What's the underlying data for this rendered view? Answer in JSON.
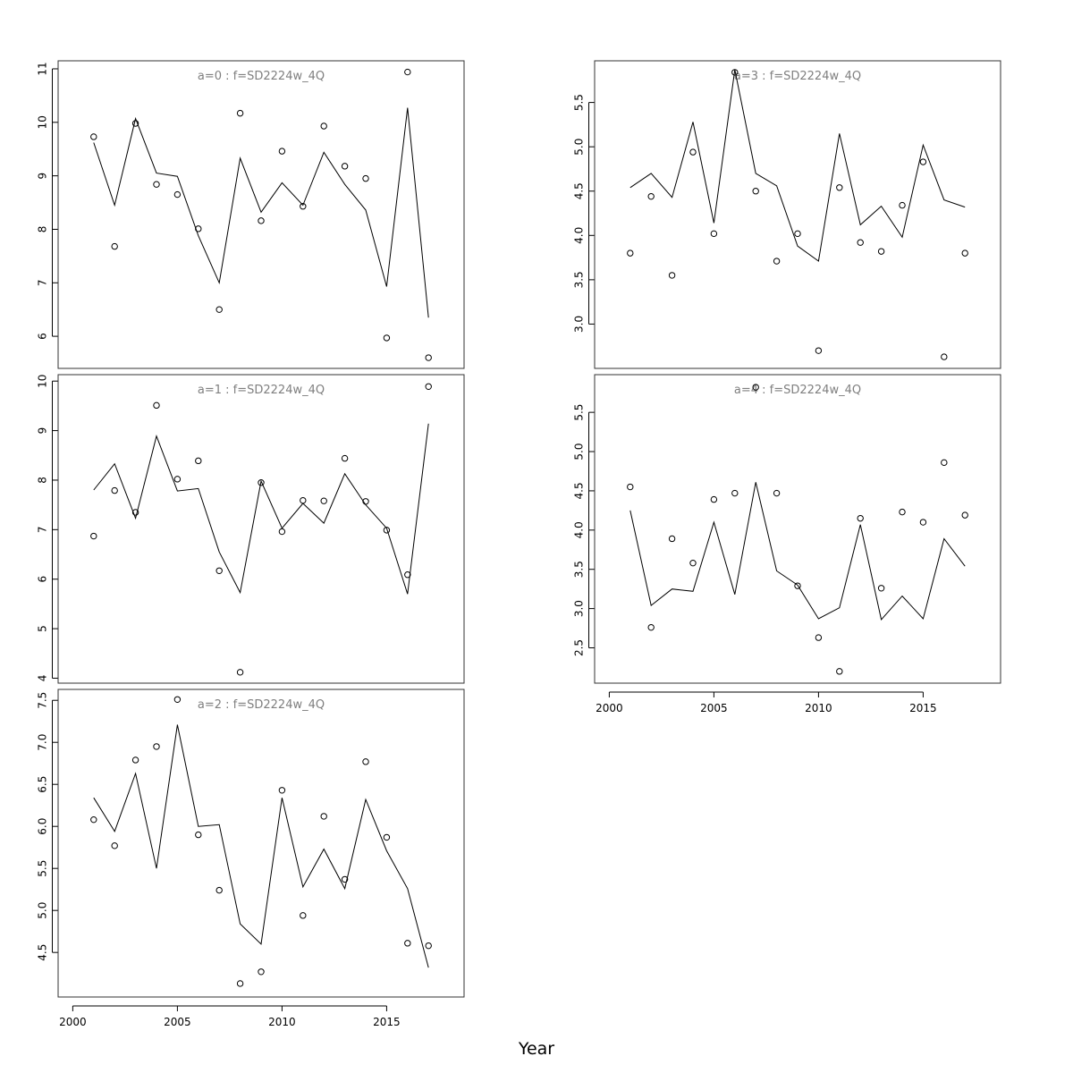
{
  "xlabel": "Year",
  "chart_data": [
    {
      "type": "line+scatter",
      "title": "a=0 : f=SD2224w_4Q",
      "x": [
        2001,
        2002,
        2003,
        2004,
        2005,
        2006,
        2007,
        2008,
        2009,
        2010,
        2011,
        2012,
        2013,
        2014,
        2015,
        2016,
        2017
      ],
      "series": [
        {
          "kind": "line",
          "values": [
            9.62,
            8.45,
            10.07,
            9.05,
            8.99,
            7.88,
            7.0,
            9.33,
            8.32,
            8.87,
            8.45,
            9.44,
            8.84,
            8.36,
            6.93,
            10.27,
            6.35
          ]
        },
        {
          "kind": "points",
          "values": [
            9.73,
            7.68,
            9.98,
            8.84,
            8.65,
            8.01,
            6.5,
            10.17,
            8.16,
            9.46,
            8.43,
            9.93,
            9.18,
            8.95,
            5.97,
            10.94,
            5.6
          ]
        }
      ],
      "xlim": [
        1999.3,
        2018.7
      ],
      "ylim": [
        5.4,
        11.15
      ],
      "yticks": [
        "6",
        "7",
        "8",
        "9",
        "10",
        "11"
      ],
      "xticks": [],
      "show_xaxis": false
    },
    {
      "type": "line+scatter",
      "title": "a=1 : f=SD2224w_4Q",
      "x": [
        2001,
        2002,
        2003,
        2004,
        2005,
        2006,
        2007,
        2008,
        2009,
        2010,
        2011,
        2012,
        2013,
        2014,
        2015,
        2016,
        2017
      ],
      "series": [
        {
          "kind": "line",
          "values": [
            7.8,
            8.33,
            7.23,
            8.89,
            7.78,
            7.83,
            6.55,
            5.73,
            7.98,
            7.03,
            7.53,
            7.13,
            8.13,
            7.5,
            7.03,
            5.7,
            9.14
          ]
        },
        {
          "kind": "points",
          "values": [
            6.87,
            7.79,
            7.35,
            9.51,
            8.02,
            8.39,
            6.17,
            4.12,
            7.95,
            6.96,
            7.59,
            7.58,
            8.44,
            7.57,
            6.99,
            6.09,
            9.89
          ]
        }
      ],
      "xlim": [
        1999.3,
        2018.7
      ],
      "ylim": [
        3.9,
        10.13
      ],
      "yticks": [
        "4",
        "5",
        "6",
        "7",
        "8",
        "9",
        "10"
      ],
      "xticks": [],
      "show_xaxis": false
    },
    {
      "type": "line+scatter",
      "title": "a=2 : f=SD2224w_4Q",
      "x": [
        2001,
        2002,
        2003,
        2004,
        2005,
        2006,
        2007,
        2008,
        2009,
        2010,
        2011,
        2012,
        2013,
        2014,
        2015,
        2016,
        2017
      ],
      "series": [
        {
          "kind": "line",
          "values": [
            6.34,
            5.94,
            6.63,
            5.5,
            7.21,
            6.0,
            6.02,
            4.84,
            4.6,
            6.34,
            5.28,
            5.73,
            5.26,
            6.32,
            5.71,
            5.26,
            4.32
          ]
        },
        {
          "kind": "points",
          "values": [
            6.08,
            5.77,
            6.79,
            6.95,
            7.51,
            5.9,
            5.24,
            4.13,
            4.27,
            6.43,
            4.94,
            6.12,
            5.37,
            6.77,
            5.87,
            4.61,
            4.58
          ]
        }
      ],
      "xlim": [
        1999.3,
        2018.7
      ],
      "ylim": [
        3.97,
        7.63
      ],
      "yticks": [
        "4.5",
        "5.0",
        "5.5",
        "6.0",
        "6.5",
        "7.0",
        "7.5"
      ],
      "xticks": [
        "2000",
        "2005",
        "2010",
        "2015"
      ],
      "show_xaxis": true
    },
    {
      "type": "line+scatter",
      "title": "a=3 : f=SD2224w_4Q",
      "x": [
        2001,
        2002,
        2003,
        2004,
        2005,
        2006,
        2007,
        2008,
        2009,
        2010,
        2011,
        2012,
        2013,
        2014,
        2015,
        2016,
        2017
      ],
      "series": [
        {
          "kind": "line",
          "values": [
            4.54,
            4.7,
            4.43,
            5.28,
            4.14,
            5.87,
            4.7,
            4.56,
            3.88,
            3.71,
            5.15,
            4.12,
            4.33,
            3.98,
            5.02,
            4.4,
            4.32
          ]
        },
        {
          "kind": "points",
          "values": [
            3.8,
            4.44,
            3.55,
            4.94,
            4.02,
            5.84,
            4.5,
            3.71,
            4.02,
            2.7,
            4.54,
            3.92,
            3.82,
            4.34,
            4.83,
            2.63,
            3.8
          ]
        }
      ],
      "xlim": [
        1999.3,
        2018.7
      ],
      "ylim": [
        2.5,
        5.97
      ],
      "yticks": [
        "3.0",
        "3.5",
        "4.0",
        "4.5",
        "5.0",
        "5.5"
      ],
      "xticks": [],
      "show_xaxis": false
    },
    {
      "type": "line+scatter",
      "title": "a=4 : f=SD2224w_4Q",
      "x": [
        2001,
        2002,
        2003,
        2004,
        2005,
        2006,
        2007,
        2008,
        2009,
        2010,
        2011,
        2012,
        2013,
        2014,
        2015,
        2016,
        2017
      ],
      "series": [
        {
          "kind": "line",
          "values": [
            4.25,
            3.04,
            3.25,
            3.22,
            4.1,
            3.18,
            4.61,
            3.48,
            3.3,
            2.87,
            3.01,
            4.07,
            2.86,
            3.16,
            2.87,
            3.89,
            3.54
          ]
        },
        {
          "kind": "points",
          "values": [
            4.55,
            2.76,
            3.89,
            3.58,
            4.39,
            4.47,
            5.82,
            4.47,
            3.29,
            2.63,
            2.2,
            4.15,
            3.26,
            4.23,
            4.1,
            4.86,
            4.19
          ]
        }
      ],
      "xlim": [
        1999.3,
        2018.7
      ],
      "ylim": [
        2.05,
        5.98
      ],
      "yticks": [
        "2.5",
        "3.0",
        "3.5",
        "4.0",
        "4.5",
        "5.0",
        "5.5"
      ],
      "xticks": [
        "2000",
        "2005",
        "2010",
        "2015"
      ],
      "show_xaxis": true
    }
  ]
}
